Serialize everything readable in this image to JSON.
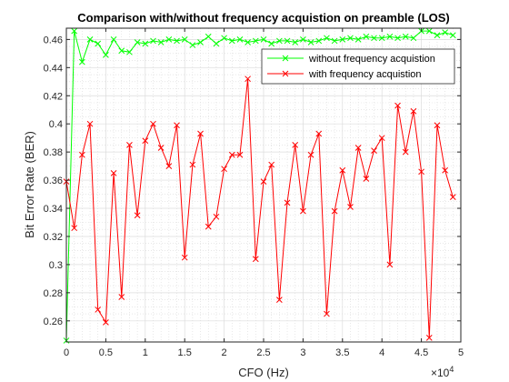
{
  "chart_data": {
    "type": "line",
    "title": "Comparison with/without frequency acquistion on preamble (LOS)",
    "xlabel": "CFO (Hz)",
    "ylabel": "Bit Error Rate (BER)",
    "x_exponent_label": "×10",
    "x_exponent_power": "4",
    "xlim": [
      0,
      50000
    ],
    "ylim": [
      0.245,
      0.468
    ],
    "x_ticks": [
      0,
      5000,
      10000,
      15000,
      20000,
      25000,
      30000,
      35000,
      40000,
      45000,
      50000
    ],
    "x_tick_labels": [
      "0",
      "0.5",
      "1",
      "1.5",
      "2",
      "2.5",
      "3",
      "3.5",
      "4",
      "4.5",
      "5"
    ],
    "y_ticks": [
      0.26,
      0.28,
      0.3,
      0.32,
      0.34,
      0.36,
      0.38,
      0.4,
      0.42,
      0.44,
      0.46
    ],
    "y_tick_labels": [
      "0.26",
      "0.28",
      "0.3",
      "0.32",
      "0.34",
      "0.36",
      "0.38",
      "0.4",
      "0.42",
      "0.44",
      "0.46"
    ],
    "grid": true,
    "minor_grid": true,
    "legend_position": "top-right",
    "x": [
      0,
      1000,
      2000,
      3000,
      4000,
      5000,
      6000,
      7000,
      8000,
      9000,
      10000,
      11000,
      12000,
      13000,
      14000,
      15000,
      16000,
      17000,
      18000,
      19000,
      20000,
      21000,
      22000,
      23000,
      24000,
      25000,
      26000,
      27000,
      28000,
      29000,
      30000,
      31000,
      32000,
      33000,
      34000,
      35000,
      36000,
      37000,
      38000,
      39000,
      40000,
      41000,
      42000,
      43000,
      44000,
      45000,
      46000,
      47000,
      48000,
      49000
    ],
    "series": [
      {
        "name": "without frequency acquistion",
        "color": "#00ff00",
        "marker": "x",
        "values": [
          0.246,
          0.466,
          0.444,
          0.46,
          0.457,
          0.449,
          0.46,
          0.452,
          0.451,
          0.458,
          0.457,
          0.459,
          0.458,
          0.46,
          0.459,
          0.46,
          0.456,
          0.458,
          0.462,
          0.457,
          0.461,
          0.459,
          0.46,
          0.458,
          0.459,
          0.46,
          0.457,
          0.459,
          0.459,
          0.458,
          0.46,
          0.458,
          0.459,
          0.461,
          0.459,
          0.46,
          0.461,
          0.46,
          0.462,
          0.461,
          0.461,
          0.462,
          0.461,
          0.462,
          0.461,
          0.466,
          0.466,
          0.463,
          0.465,
          0.463
        ]
      },
      {
        "name": "with frequency acquistion",
        "color": "#ff0000",
        "marker": "x",
        "values": [
          0.359,
          0.326,
          0.378,
          0.4,
          0.268,
          0.259,
          0.365,
          0.277,
          0.385,
          0.335,
          0.388,
          0.4,
          0.383,
          0.37,
          0.399,
          0.305,
          0.371,
          0.393,
          0.327,
          0.334,
          0.368,
          0.378,
          0.378,
          0.432,
          0.304,
          0.359,
          0.371,
          0.275,
          0.344,
          0.385,
          0.338,
          0.378,
          0.393,
          0.265,
          0.338,
          0.367,
          0.341,
          0.383,
          0.361,
          0.381,
          0.39,
          0.3,
          0.413,
          0.38,
          0.409,
          0.366,
          0.248,
          0.399,
          0.367,
          0.348
        ]
      }
    ]
  }
}
